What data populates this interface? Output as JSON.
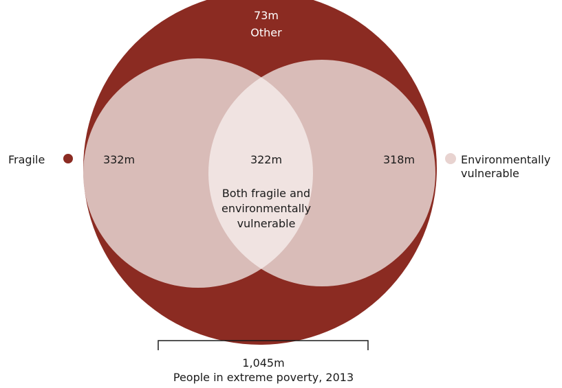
{
  "colors": {
    "outer": "#8b2b22",
    "fragile_dot": "#8b2b22",
    "circle": "#d9bcb8",
    "overlap": "#f0e3e1",
    "env_dot": "#e8d3d0"
  },
  "other": {
    "value": "73m",
    "label": "Other"
  },
  "fragile": {
    "label": "Fragile",
    "value": "332m"
  },
  "both": {
    "value": "322m",
    "label_lines": [
      "Both fragile and",
      "environmentally",
      "vulnerable"
    ]
  },
  "environmental": {
    "value": "318m",
    "label_lines": [
      "Environmentally",
      "vulnerable"
    ]
  },
  "total": {
    "value": "1,045m",
    "label": "People in extreme poverty, 2013"
  }
}
